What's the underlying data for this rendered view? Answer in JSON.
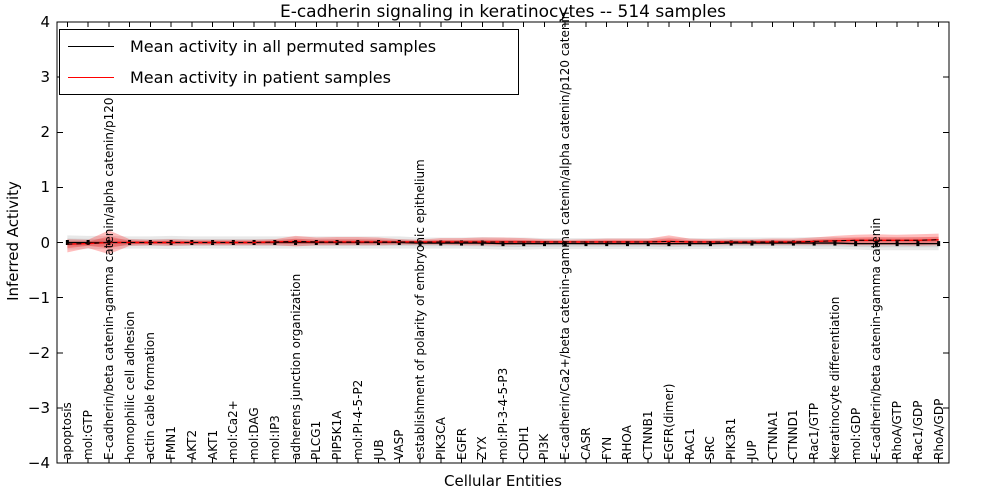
{
  "chart_data": {
    "type": "line",
    "title": "E-cadherin signaling in keratinocytes -- 514 samples",
    "xlabel": "Cellular Entities",
    "ylabel": "Inferred Activity",
    "ylim": [
      -4,
      4
    ],
    "ytick_labels": [
      "4",
      "3",
      "2",
      "1",
      "0",
      "−1",
      "−2",
      "−3",
      "−4"
    ],
    "ytick_values": [
      4,
      3,
      2,
      1,
      0,
      -1,
      -2,
      -3,
      -4
    ],
    "grid": "off",
    "legend_position": "upper-left",
    "categories": [
      "apoptosis",
      "mol:GTP",
      "E-cadherin/beta catenin-gamma catenin/alpha catenin/p120 catenin",
      "homophilic cell adhesion",
      "actin cable formation",
      "FMN1",
      "AKT2",
      "AKT1",
      "mol:Ca2+",
      "mol:DAG",
      "mol:IP3",
      "adherens junction organization",
      "PLCG1",
      "PIP5K1A",
      "mol:PI-4-5-P2",
      "JUB",
      "VASP",
      "establishment of polarity of embryonic epithelium",
      "PIK3CA",
      "EGFR",
      "ZYX",
      "mol:PI-3-4-5-P3",
      "CDH1",
      "PI3K",
      "E-cadherin/Ca2+/beta catenin-gamma catenin/alpha catenin/p120 catenin",
      "CASR",
      "FYN",
      "RHOA",
      "CTNNB1",
      "EGFR(dimer)",
      "RAC1",
      "SRC",
      "PIK3R1",
      "JUP",
      "CTNNA1",
      "CTNND1",
      "Rac1/GTP",
      "keratinocyte differentiation",
      "mol:GDP",
      "E-cadherin/beta catenin-gamma catenin",
      "RhoA/GTP",
      "Rac1/GDP",
      "RhoA/GDP"
    ],
    "series": [
      {
        "name": "Mean activity in all permuted samples",
        "color": "#000000",
        "band_color": "#000000",
        "band_alpha": 0.09,
        "values": [
          0,
          0,
          0,
          0,
          0,
          0,
          0,
          0,
          0,
          0,
          0,
          0,
          0,
          0,
          0,
          0,
          0,
          -0.01,
          -0.01,
          -0.01,
          -0.01,
          -0.02,
          -0.02,
          -0.02,
          -0.02,
          -0.02,
          -0.02,
          -0.02,
          -0.02,
          -0.02,
          -0.02,
          -0.02,
          -0.01,
          -0.01,
          -0.01,
          -0.01,
          -0.01,
          -0.01,
          -0.02,
          -0.02,
          -0.02,
          -0.02,
          -0.02
        ],
        "std": [
          0.13,
          0.12,
          0.12,
          0.11,
          0.11,
          0.12,
          0.11,
          0.11,
          0.11,
          0.11,
          0.11,
          0.11,
          0.11,
          0.11,
          0.11,
          0.11,
          0.11,
          0.1,
          0.1,
          0.1,
          0.11,
          0.11,
          0.11,
          0.1,
          0.1,
          0.1,
          0.1,
          0.1,
          0.1,
          0.11,
          0.1,
          0.1,
          0.1,
          0.1,
          0.1,
          0.1,
          0.11,
          0.11,
          0.11,
          0.12,
          0.12,
          0.12,
          0.12
        ]
      },
      {
        "name": "Mean activity in patient samples",
        "color": "#ff0000",
        "band_color": "#ff0000",
        "band_alpha": 0.26,
        "values": [
          -0.03,
          -0.02,
          0,
          0,
          0,
          0,
          0,
          0,
          0,
          0,
          0.01,
          0.02,
          0.01,
          0.01,
          0.01,
          0.01,
          0.01,
          0.01,
          0.01,
          0.01,
          0.01,
          0.01,
          0.01,
          0.01,
          0.01,
          0.01,
          0.01,
          0.01,
          0.01,
          0.02,
          0.01,
          0.01,
          0.01,
          0.01,
          0.01,
          0.01,
          0.02,
          0.03,
          0.04,
          0.04,
          0.04,
          0.04,
          0.05
        ],
        "band_upper": [
          0.06,
          0.05,
          0.22,
          0.06,
          0.05,
          0.06,
          0.05,
          0.05,
          0.05,
          0.05,
          0.06,
          0.12,
          0.09,
          0.1,
          0.1,
          0.09,
          0.06,
          0.05,
          0.08,
          0.08,
          0.09,
          0.09,
          0.08,
          0.06,
          0.05,
          0.06,
          0.07,
          0.07,
          0.07,
          0.13,
          0.07,
          0.06,
          0.06,
          0.06,
          0.07,
          0.07,
          0.09,
          0.12,
          0.14,
          0.15,
          0.14,
          0.15,
          0.16
        ],
        "band_lower": [
          -0.18,
          -0.1,
          -0.21,
          -0.06,
          -0.05,
          -0.06,
          -0.05,
          -0.05,
          -0.05,
          -0.05,
          -0.05,
          -0.07,
          -0.05,
          -0.05,
          -0.05,
          -0.05,
          -0.04,
          -0.04,
          -0.04,
          -0.05,
          -0.05,
          -0.05,
          -0.04,
          -0.04,
          -0.03,
          -0.04,
          -0.04,
          -0.04,
          -0.04,
          -0.05,
          -0.04,
          -0.04,
          -0.04,
          -0.04,
          -0.04,
          -0.04,
          -0.04,
          -0.04,
          -0.05,
          -0.05,
          -0.05,
          -0.06,
          -0.05
        ]
      }
    ],
    "style": {
      "frame_color": "#000000",
      "background": "#ffffff",
      "dashed_overlay_color": "#000000"
    }
  },
  "legend": {
    "entries": [
      {
        "label": "Mean activity in all permuted samples",
        "color": "#000000"
      },
      {
        "label": "Mean activity in patient samples",
        "color": "#ff0000"
      }
    ]
  }
}
